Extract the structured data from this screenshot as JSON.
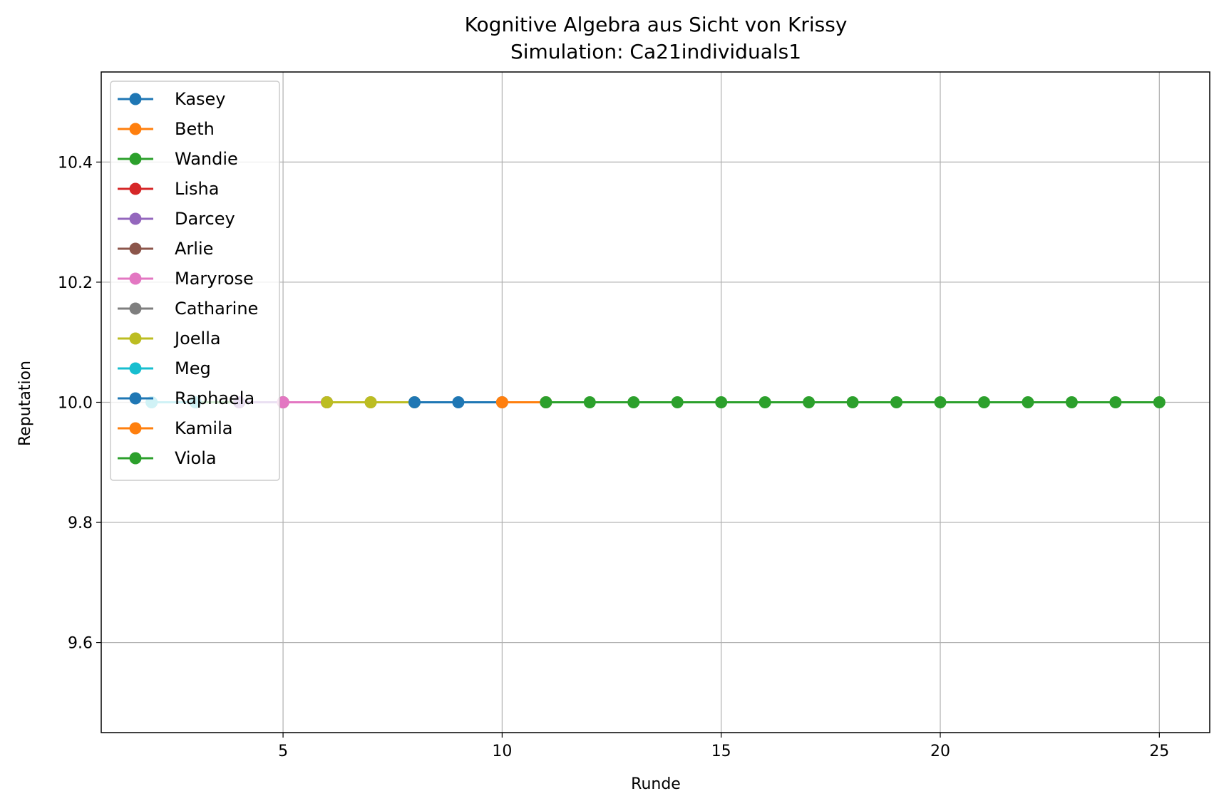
{
  "chart_data": {
    "type": "line",
    "title": "Kognitive Algebra aus Sicht von Krissy",
    "subtitle": "Simulation: Ca21individuals1",
    "xlabel": "Runde",
    "ylabel": "Reputation",
    "xlim": [
      0.85,
      26.15
    ],
    "ylim": [
      9.45,
      10.55
    ],
    "xticks": [
      5,
      10,
      15,
      20,
      25
    ],
    "yticks": [
      9.6,
      9.8,
      10.0,
      10.2,
      10.4
    ],
    "xtick_labels": [
      "5",
      "10",
      "15",
      "20",
      "25"
    ],
    "ytick_labels": [
      "9.6",
      "9.8",
      "10.0",
      "10.2",
      "10.4"
    ],
    "grid": true,
    "legend_position": "upper-left",
    "series": [
      {
        "name": "Kasey",
        "color": "#1f77b4",
        "x": [
          2,
          3
        ],
        "y": [
          10.0,
          10.0
        ]
      },
      {
        "name": "Beth",
        "color": "#ff7f0e",
        "x": [
          3,
          4
        ],
        "y": [
          10.0,
          10.0
        ]
      },
      {
        "name": "Wandie",
        "color": "#2ca02c",
        "x": [
          3,
          4
        ],
        "y": [
          10.0,
          10.0
        ]
      },
      {
        "name": "Lisha",
        "color": "#d62728",
        "x": [
          4,
          5
        ],
        "y": [
          10.0,
          10.0
        ]
      },
      {
        "name": "Darcey",
        "color": "#9467bd",
        "x": [
          4,
          5
        ],
        "y": [
          10.0,
          10.0
        ]
      },
      {
        "name": "Arlie",
        "color": "#8c564b",
        "x": [
          5,
          6
        ],
        "y": [
          10.0,
          10.0
        ]
      },
      {
        "name": "Maryrose",
        "color": "#e377c2",
        "x": [
          5,
          6
        ],
        "y": [
          10.0,
          10.0
        ]
      },
      {
        "name": "Catharine",
        "color": "#7f7f7f",
        "x": [
          6,
          7
        ],
        "y": [
          10.0,
          10.0
        ]
      },
      {
        "name": "Joella",
        "color": "#bcbd22",
        "x": [
          6,
          7,
          8
        ],
        "y": [
          10.0,
          10.0,
          10.0
        ]
      },
      {
        "name": "Meg",
        "color": "#17becf",
        "x": [
          2,
          3
        ],
        "y": [
          10.0,
          10.0
        ]
      },
      {
        "name": "Raphaela",
        "color": "#1f77b4",
        "x": [
          8,
          9,
          10,
          11
        ],
        "y": [
          10.0,
          10.0,
          10.0,
          10.0
        ]
      },
      {
        "name": "Kamila",
        "color": "#ff7f0e",
        "x": [
          10,
          11
        ],
        "y": [
          10.0,
          10.0
        ]
      },
      {
        "name": "Viola",
        "color": "#2ca02c",
        "x": [
          11,
          12,
          13,
          14,
          15,
          16,
          17,
          18,
          19,
          20,
          21,
          22,
          23,
          24,
          25
        ],
        "y": [
          10.0,
          10.0,
          10.0,
          10.0,
          10.0,
          10.0,
          10.0,
          10.0,
          10.0,
          10.0,
          10.0,
          10.0,
          10.0,
          10.0,
          10.0
        ]
      }
    ]
  }
}
